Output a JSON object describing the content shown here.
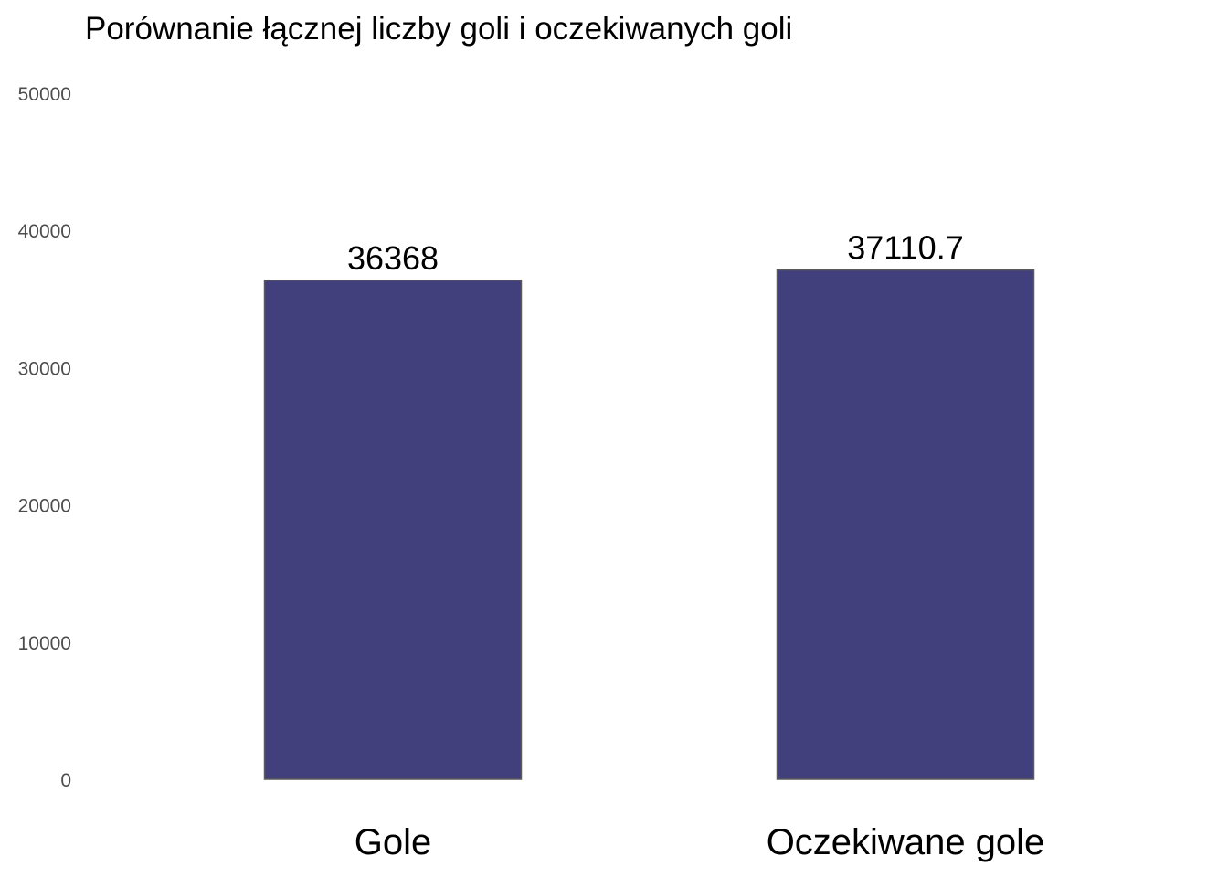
{
  "chart_data": {
    "type": "bar",
    "title": "Porównanie łącznej liczby goli i oczekiwanych goli",
    "xlabel": "",
    "ylabel": "",
    "categories": [
      "Gole",
      "Oczekiwane gole"
    ],
    "values": [
      36368,
      37110.7
    ],
    "data_labels": [
      "36368",
      "37110.7"
    ],
    "ylim": [
      0,
      50000
    ],
    "y_ticks": [
      0,
      10000,
      20000,
      30000,
      40000,
      50000
    ],
    "y_tick_labels": [
      "0",
      "10000",
      "20000",
      "30000",
      "40000",
      "50000"
    ],
    "grid": false,
    "legend": "none",
    "bar_color": "#41407c",
    "bar_edge_color": "#5a5a5a"
  }
}
